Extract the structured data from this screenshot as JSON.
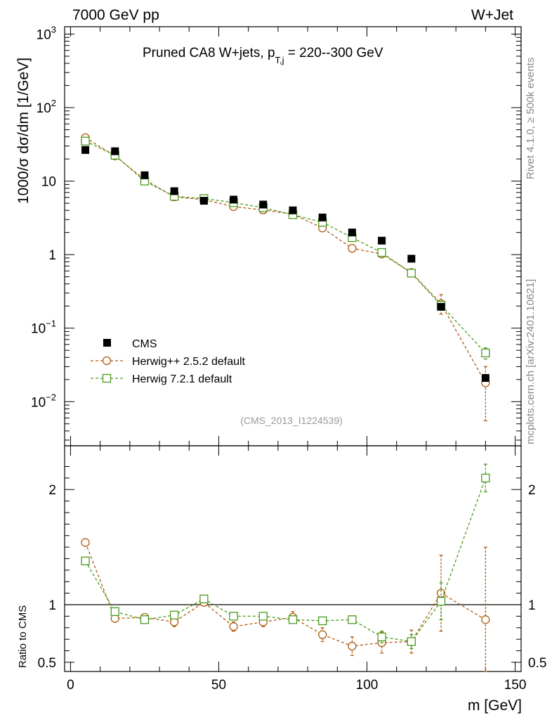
{
  "header": {
    "left": "7000 GeV pp",
    "right": "W+Jet"
  },
  "side_labels": {
    "rivet": "Rivet 4.1.0, ≥ 500k events",
    "mcplots": "mcplots.cern.ch [arXiv:2401.10621]"
  },
  "chart_data": {
    "type": "scatter",
    "title_main": "Pruned CA8 W+jets, p",
    "title_sub": "T,j",
    "title_tail": " = 220--300 GeV",
    "analysis_id": "(CMS_2013_I1224539)",
    "ylabel_main": "1000/σ  dσ/dm [1/GeV]",
    "ylabel_ratio": "Ratio to CMS",
    "xlabel": "m [GeV]",
    "xlim": [
      -2,
      152
    ],
    "ylim_main_log10": [
      -2.6,
      3.1
    ],
    "ylim_ratio": [
      0.42,
      2.38
    ],
    "x_ticks": [
      0,
      50,
      100,
      150
    ],
    "x_tick_labels": [
      "0",
      "50",
      "100",
      "150"
    ],
    "y_ticks_main": [
      {
        "label": "10",
        "sup": "3"
      },
      {
        "label": "10",
        "sup": "2"
      },
      {
        "label": "10",
        "sup": ""
      },
      {
        "label": "1",
        "sup": ""
      },
      {
        "label": "10",
        "sup": "−1"
      },
      {
        "label": "10",
        "sup": "−2"
      }
    ],
    "y_ticks_main_exp": [
      3,
      2,
      1,
      0,
      -1,
      -2
    ],
    "y_ticks_ratio": [
      2,
      1,
      0.5
    ],
    "y_tick_labels_ratio": [
      "2",
      "1",
      "0.5"
    ],
    "x": [
      5,
      15,
      25,
      35,
      45,
      55,
      65,
      75,
      85,
      95,
      105,
      115,
      125,
      140
    ],
    "series": [
      {
        "name": "CMS",
        "color": "#000000",
        "marker": "square-filled",
        "values": [
          26.5,
          25.5,
          12.0,
          7.3,
          5.4,
          5.6,
          4.8,
          4.0,
          3.2,
          2.0,
          1.55,
          0.88,
          0.195,
          0.021
        ]
      },
      {
        "name": "Herwig++ 2.5.2 default",
        "color": "#b05c12",
        "marker": "circle-open",
        "values": [
          39.0,
          22.0,
          10.5,
          6.1,
          5.6,
          4.5,
          4.05,
          3.55,
          2.3,
          1.22,
          1.02,
          0.57,
          0.215,
          0.018
        ],
        "err_low": [
          0,
          0,
          0,
          0,
          0,
          0,
          0,
          0,
          0,
          0,
          0,
          0.07,
          0.06,
          0.0125
        ],
        "err_high": [
          0,
          0,
          0,
          0,
          0,
          0,
          0,
          0,
          0,
          0,
          0,
          0.07,
          0.07,
          0.012
        ],
        "ratio": [
          1.54,
          0.88,
          0.89,
          0.85,
          1.02,
          0.81,
          0.85,
          0.89,
          0.74,
          0.64,
          0.67,
          0.68,
          1.1,
          0.87
        ],
        "ratio_err": [
          0,
          0,
          0.03,
          0.04,
          0,
          0.04,
          0.04,
          0.05,
          0.06,
          0.08,
          0.09,
          0.1,
          0.33,
          0.63
        ]
      },
      {
        "name": "Herwig 7.2.1 default",
        "color": "#4a9a1c",
        "marker": "square-open",
        "values": [
          35.0,
          22.5,
          10.0,
          6.2,
          5.8,
          5.1,
          4.35,
          3.5,
          2.75,
          1.7,
          1.07,
          0.56,
          0.205,
          0.046
        ],
        "err_low": [
          0,
          0,
          0,
          0,
          0,
          0,
          0,
          0,
          0,
          0,
          0,
          0,
          0,
          0.008
        ],
        "err_high": [
          0,
          0,
          0,
          0,
          0,
          0,
          0,
          0,
          0,
          0,
          0,
          0,
          0,
          0.008
        ],
        "ratio": [
          1.38,
          0.94,
          0.87,
          0.91,
          1.05,
          0.9,
          0.9,
          0.87,
          0.86,
          0.87,
          0.72,
          0.68,
          1.03,
          2.1
        ],
        "ratio_err": [
          0,
          0,
          0,
          0,
          0,
          0,
          0,
          0,
          0,
          0.03,
          0.05,
          0.06,
          0.16,
          0.12
        ]
      }
    ]
  }
}
